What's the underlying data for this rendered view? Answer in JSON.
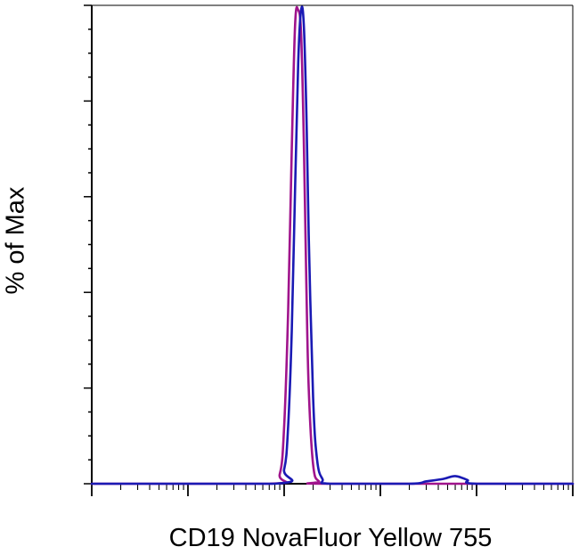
{
  "chart_data": {
    "type": "line",
    "title": "",
    "xlabel": "CD19 NovaFluor Yellow 755",
    "ylabel": "% of Max",
    "xscale": "log",
    "xlim": [
      10,
      1000000
    ],
    "ylim": [
      0,
      100
    ],
    "grid": false,
    "legend": "none",
    "series": [
      {
        "color": "#a0148c",
        "x": [
          10,
          700,
          900,
          1000,
          1100,
          1200,
          1300,
          1400,
          1500,
          1600,
          1700,
          1800,
          2000,
          2300,
          3000,
          1000000
        ],
        "y": [
          0,
          0,
          2,
          12,
          36,
          70,
          96,
          99,
          94,
          72,
          42,
          20,
          4,
          0.5,
          0,
          0
        ]
      },
      {
        "color": "#1a1ab4",
        "x": [
          10,
          800,
          1000,
          1100,
          1200,
          1300,
          1400,
          1500,
          1600,
          1700,
          1800,
          2000,
          2200,
          2500,
          3000,
          20000,
          30000,
          45000,
          60000,
          80000,
          100000,
          1000000
        ],
        "y": [
          0,
          0,
          3,
          12,
          32,
          62,
          88,
          99,
          96,
          78,
          52,
          18,
          5,
          1,
          0,
          0,
          0.5,
          1,
          1.6,
          0.8,
          0,
          0
        ]
      }
    ]
  }
}
